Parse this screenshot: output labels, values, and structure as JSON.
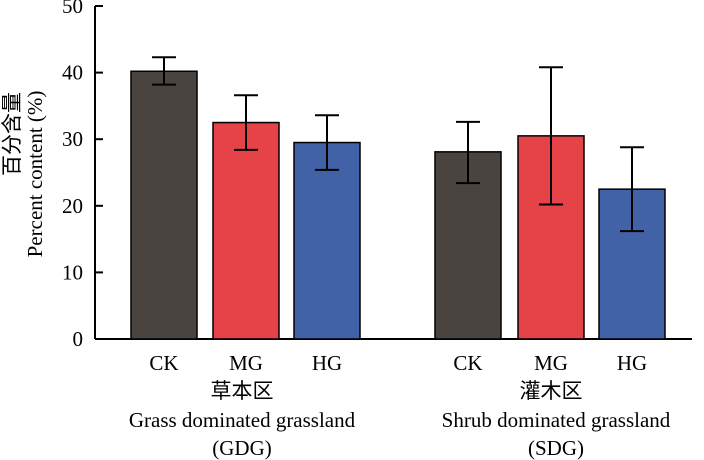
{
  "chart_data": {
    "type": "bar",
    "ylabel_cn": "百分含量",
    "ylabel_en": "Percent content (%)",
    "ylim": [
      0,
      50
    ],
    "yticks": [
      0,
      10,
      20,
      30,
      40,
      50
    ],
    "grid": false,
    "groups": [
      {
        "name_cn": "草本区",
        "name_en": "Grass dominated grassland",
        "abbr": "(GDG)",
        "bars": [
          {
            "category": "CK",
            "value": 40.2,
            "err_low": 38.2,
            "err_high": 42.3,
            "color": "#4a4441"
          },
          {
            "category": "MG",
            "value": 32.5,
            "err_low": 28.4,
            "err_high": 36.6,
            "color": "#e64348"
          },
          {
            "category": "HG",
            "value": 29.5,
            "err_low": 25.4,
            "err_high": 33.6,
            "color": "#4262a8"
          }
        ]
      },
      {
        "name_cn": "灌木区",
        "name_en": "Shrub dominated grassland",
        "abbr": "(SDG)",
        "bars": [
          {
            "category": "CK",
            "value": 28.1,
            "err_low": 23.4,
            "err_high": 32.6,
            "color": "#4a4441"
          },
          {
            "category": "MG",
            "value": 30.5,
            "err_low": 20.2,
            "err_high": 40.8,
            "color": "#e64348"
          },
          {
            "category": "HG",
            "value": 22.5,
            "err_low": 16.2,
            "err_high": 28.8,
            "color": "#4262a8"
          }
        ]
      }
    ]
  }
}
